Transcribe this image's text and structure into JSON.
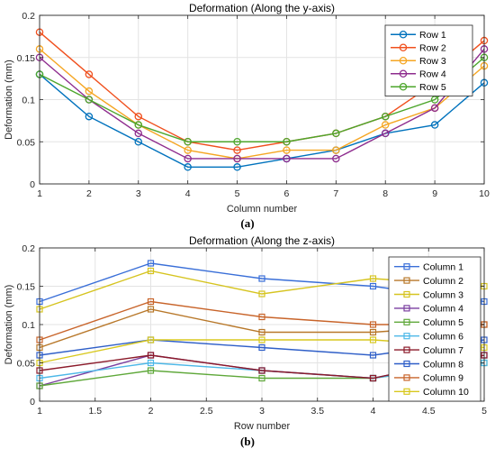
{
  "chart_data": [
    {
      "type": "line",
      "title": "Deformation (Along the y-axis)",
      "xlabel": "Column number",
      "ylabel": "Deformation (mm)",
      "caption": "(a)",
      "xlim": [
        1,
        10
      ],
      "ylim": [
        0,
        0.2
      ],
      "xticks": [
        "1",
        "2",
        "3",
        "4",
        "5",
        "6",
        "7",
        "8",
        "9",
        "10"
      ],
      "yticks": [
        "0",
        "0.05",
        "0.1",
        "0.15",
        "0.2"
      ],
      "grid": true,
      "legend_position": "top-right",
      "marker": "circle",
      "x": [
        1,
        2,
        3,
        4,
        5,
        6,
        7,
        8,
        9,
        10
      ],
      "series": [
        {
          "name": "Row 1",
          "color": "#0072BD",
          "values": [
            0.13,
            0.08,
            0.05,
            0.02,
            0.02,
            0.03,
            0.04,
            0.06,
            0.07,
            0.12
          ]
        },
        {
          "name": "Row 2",
          "color": "#F0501E",
          "values": [
            0.18,
            0.13,
            0.08,
            0.05,
            0.04,
            0.05,
            0.06,
            0.08,
            0.12,
            0.17
          ]
        },
        {
          "name": "Row 3",
          "color": "#F5A623",
          "values": [
            0.16,
            0.11,
            0.07,
            0.04,
            0.03,
            0.04,
            0.04,
            0.07,
            0.09,
            0.14
          ]
        },
        {
          "name": "Row 4",
          "color": "#8E2C8E",
          "values": [
            0.15,
            0.1,
            0.06,
            0.03,
            0.03,
            0.03,
            0.03,
            0.06,
            0.09,
            0.16
          ]
        },
        {
          "name": "Row 5",
          "color": "#4DA62C",
          "values": [
            0.13,
            0.1,
            0.07,
            0.05,
            0.05,
            0.05,
            0.06,
            0.08,
            0.1,
            0.15
          ]
        }
      ]
    },
    {
      "type": "line",
      "title": "Deformation (Along the z-axis)",
      "xlabel": "Row number",
      "ylabel": "Deformation (mm)",
      "caption": "(b)",
      "xlim": [
        1,
        5
      ],
      "ylim": [
        0,
        0.2
      ],
      "xticks": [
        "1",
        "1.5",
        "2",
        "2.5",
        "3",
        "3.5",
        "4",
        "4.5",
        "5"
      ],
      "yticks": [
        "0",
        "0.05",
        "0.1",
        "0.15",
        "0.2"
      ],
      "grid": true,
      "legend_position": "top-right",
      "marker": "square",
      "x": [
        1,
        2,
        3,
        4,
        5
      ],
      "series": [
        {
          "name": "Column 1",
          "color": "#3A6FD8",
          "values": [
            0.13,
            0.18,
            0.16,
            0.15,
            0.13
          ]
        },
        {
          "name": "Column 2",
          "color": "#B8782A",
          "values": [
            0.07,
            0.12,
            0.09,
            0.09,
            0.1
          ]
        },
        {
          "name": "Column 3",
          "color": "#D6C420",
          "values": [
            0.12,
            0.17,
            0.14,
            0.16,
            0.15
          ]
        },
        {
          "name": "Column 4",
          "color": "#7A3FA0",
          "values": [
            0.02,
            0.06,
            0.04,
            0.03,
            0.06
          ]
        },
        {
          "name": "Column 5",
          "color": "#5FA83A",
          "values": [
            0.02,
            0.04,
            0.03,
            0.03,
            0.05
          ]
        },
        {
          "name": "Column 6",
          "color": "#4DB8E8",
          "values": [
            0.03,
            0.05,
            0.04,
            0.03,
            0.05
          ]
        },
        {
          "name": "Column 7",
          "color": "#8B1A2A",
          "values": [
            0.04,
            0.06,
            0.04,
            0.03,
            0.06
          ]
        },
        {
          "name": "Column 8",
          "color": "#2F5FC8",
          "values": [
            0.06,
            0.08,
            0.07,
            0.06,
            0.08
          ]
        },
        {
          "name": "Column 9",
          "color": "#C8642A",
          "values": [
            0.08,
            0.13,
            0.11,
            0.1,
            0.1
          ]
        },
        {
          "name": "Column 10",
          "color": "#D8C81E",
          "values": [
            0.05,
            0.08,
            0.08,
            0.08,
            0.07
          ]
        }
      ]
    }
  ]
}
